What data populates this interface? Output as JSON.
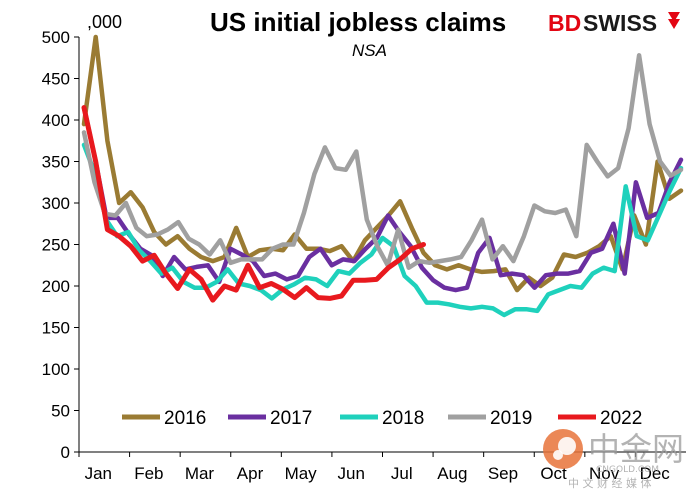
{
  "brand": {
    "part1": "BD",
    "part2": "SWISS",
    "accent_color": "#e30613",
    "icon_name": "double-chevron-icon"
  },
  "watermark": {
    "text": "中金网",
    "subtext": "CNGOLD.COM",
    "subtext2": "中 文 财 经 媒 体",
    "icon_name": "cngold-logo-icon"
  },
  "chart_data": {
    "type": "line",
    "title": "US initial jobless claims",
    "subtitle": "NSA",
    "unit_label": ",000",
    "xlabel": "",
    "ylabel": "",
    "ylim": [
      0,
      500
    ],
    "yticks": [
      0,
      50,
      100,
      150,
      200,
      250,
      300,
      350,
      400,
      450,
      500
    ],
    "xlim": [
      1,
      52
    ],
    "month_labels": [
      "Jan",
      "Feb",
      "Mar",
      "Apr",
      "May",
      "Jun",
      "Jul",
      "Aug",
      "Sep",
      "Oct",
      "Nov",
      "Dec"
    ],
    "legend_position": "bottom",
    "series": [
      {
        "name": "2016",
        "color": "#9a7b33",
        "values": [
          395,
          500,
          375,
          300,
          313,
          295,
          265,
          250,
          260,
          245,
          235,
          230,
          235,
          270,
          235,
          243,
          245,
          243,
          262,
          245,
          245,
          242,
          248,
          230,
          255,
          270,
          285,
          302,
          270,
          240,
          225,
          220,
          225,
          220,
          217,
          218,
          220,
          195,
          210,
          200,
          210,
          238,
          235,
          240,
          248,
          260,
          220,
          285,
          250,
          350,
          305,
          315
        ]
      },
      {
        "name": "2017",
        "color": "#6a2fa0",
        "values": [
          415,
          352,
          282,
          282,
          262,
          245,
          237,
          212,
          235,
          220,
          223,
          225,
          205,
          245,
          238,
          230,
          212,
          215,
          208,
          212,
          235,
          245,
          225,
          232,
          230,
          245,
          258,
          285,
          265,
          248,
          222,
          207,
          198,
          195,
          198,
          240,
          258,
          213,
          215,
          213,
          198,
          213,
          215,
          215,
          218,
          240,
          245,
          275,
          215,
          325,
          282,
          288,
          325,
          352
        ]
      },
      {
        "name": "2018",
        "color": "#1fd1bc",
        "values": [
          370,
          335,
          280,
          260,
          265,
          243,
          230,
          215,
          222,
          205,
          198,
          198,
          205,
          220,
          203,
          200,
          195,
          185,
          196,
          202,
          210,
          208,
          200,
          218,
          215,
          228,
          238,
          258,
          248,
          212,
          200,
          180,
          180,
          178,
          175,
          173,
          175,
          173,
          165,
          172,
          172,
          170,
          190,
          195,
          200,
          198,
          215,
          222,
          218,
          320,
          260,
          255,
          285,
          315,
          342
        ]
      },
      {
        "name": "2019",
        "color": "#a0a0a0",
        "values": [
          385,
          325,
          287,
          285,
          300,
          270,
          260,
          262,
          268,
          277,
          257,
          250,
          238,
          255,
          228,
          232,
          232,
          232,
          245,
          250,
          250,
          288,
          335,
          367,
          342,
          340,
          362,
          280,
          248,
          225,
          268,
          222,
          230,
          228,
          230,
          232,
          235,
          255,
          280,
          232,
          248,
          230,
          260,
          297,
          290,
          288,
          292,
          260,
          370,
          350,
          332,
          342,
          390,
          478,
          395,
          350,
          333,
          340
        ]
      },
      {
        "name": "2022",
        "color": "#e8191e",
        "values": [
          415,
          350,
          268,
          260,
          248,
          230,
          237,
          215,
          197,
          220,
          208,
          183,
          200,
          195,
          225,
          198,
          203,
          196,
          186,
          198,
          186,
          185,
          188,
          207,
          207,
          208,
          222,
          232,
          245,
          250
        ]
      }
    ]
  }
}
